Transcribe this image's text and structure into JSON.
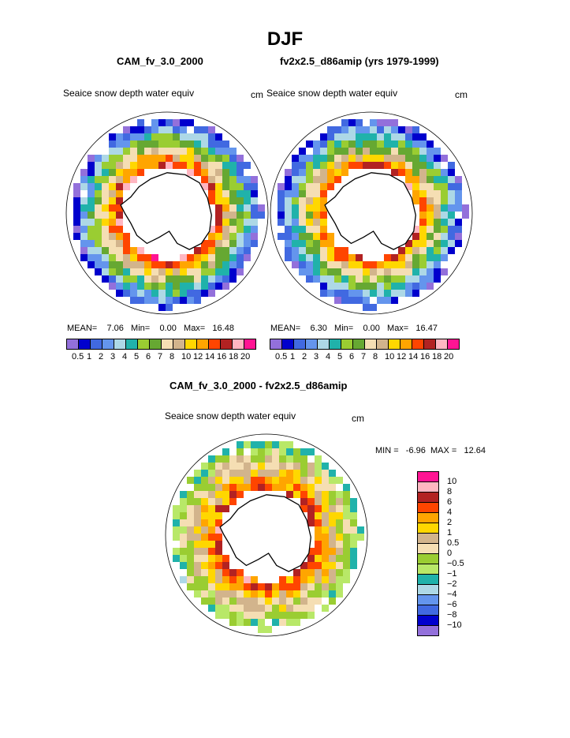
{
  "title": "DJF",
  "panels": [
    {
      "case": "CAM_fv_3.0_2000",
      "field": "Seaice snow depth water equiv",
      "unit": "cm",
      "mean_label": "MEAN=",
      "mean": "7.06",
      "min_label": "Min=",
      "min": "0.00",
      "max_label": "Max=",
      "max": "16.48"
    },
    {
      "case": "fv2x2.5_d86amip (yrs 1979-1999)",
      "field": "Seaice snow depth water equiv",
      "unit": "cm",
      "mean_label": "MEAN=",
      "mean": "6.30",
      "min_label": "Min=",
      "min": "0.00",
      "max_label": "Max=",
      "max": "16.47"
    }
  ],
  "abs_colorbar": {
    "colors": [
      "#9370db",
      "#0000cd",
      "#4169e1",
      "#6495ed",
      "#add8e6",
      "#20b2aa",
      "#9acd32",
      "#66a832",
      "#f5deb3",
      "#d2b48c",
      "#ffd700",
      "#ffa500",
      "#ff4500",
      "#b22222",
      "#ffb6c1",
      "#ff1493"
    ],
    "ticks": [
      "0.5",
      "1",
      "2",
      "3",
      "4",
      "5",
      "6",
      "7",
      "8",
      "10",
      "12",
      "14",
      "16",
      "18",
      "20"
    ]
  },
  "diff": {
    "title": "CAM_fv_3.0_2000 - fv2x2.5_d86amip",
    "field": "Seaice snow depth water equiv",
    "unit": "cm",
    "minmax": "MIN =   -6.96  MAX =   12.64"
  },
  "diff_colorbar": {
    "colors": [
      "#ff1493",
      "#ffb6c1",
      "#b22222",
      "#ff4500",
      "#ffa500",
      "#ffd700",
      "#d2b48c",
      "#f5deb3",
      "#9acd32",
      "#b8e868",
      "#20b2aa",
      "#add8e6",
      "#6495ed",
      "#4169e1",
      "#0000cd",
      "#9370db"
    ],
    "ticks": [
      "10",
      "8",
      "6",
      "4",
      "2",
      "1",
      "0.5",
      "0",
      "−0.5",
      "−1",
      "−2",
      "−4",
      "−6",
      "−8",
      "−10"
    ]
  }
}
